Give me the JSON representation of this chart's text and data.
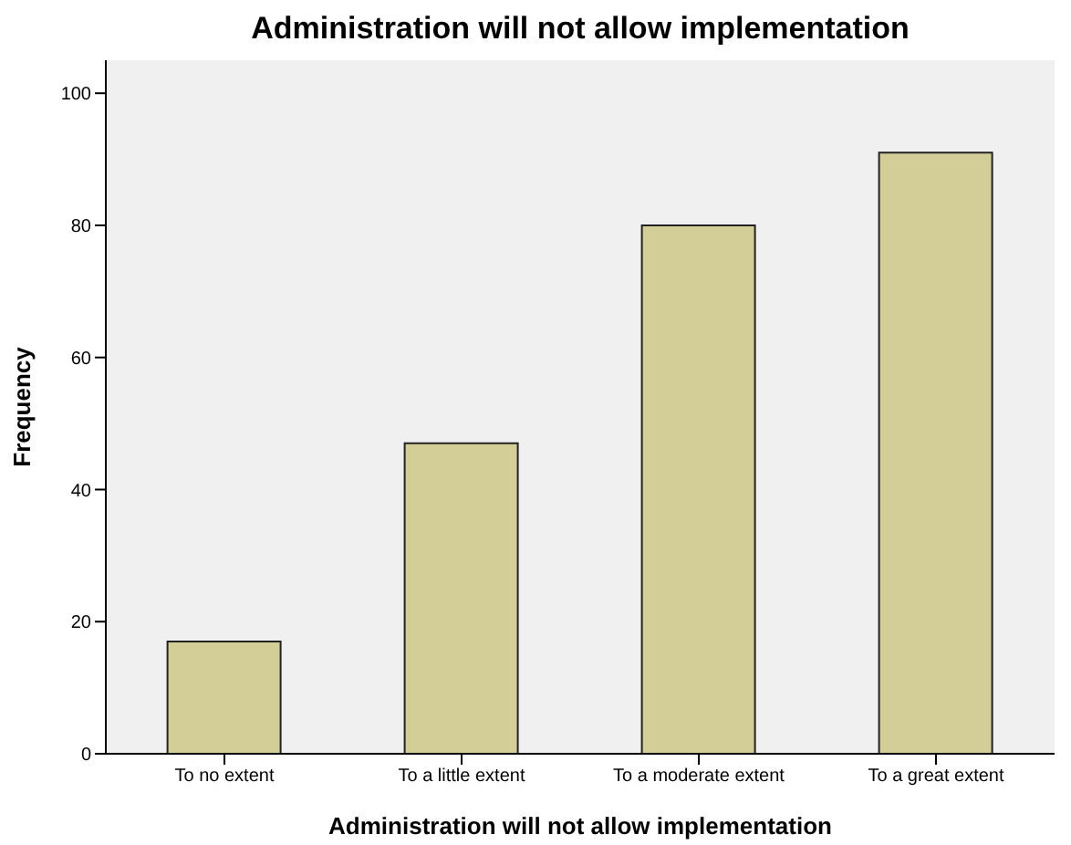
{
  "chart_data": {
    "type": "bar",
    "title": "Administration will not allow implementation",
    "xlabel": "Administration will not allow implementation",
    "ylabel": "Frequency",
    "categories": [
      "To no extent",
      "To a little extent",
      "To a moderate extent",
      "To a great extent"
    ],
    "values": [
      17,
      47,
      80,
      91
    ],
    "color": "#d3ce97",
    "ylim": [
      0,
      105
    ],
    "yticks": [
      0,
      20,
      40,
      60,
      80,
      100
    ],
    "grid": false
  }
}
